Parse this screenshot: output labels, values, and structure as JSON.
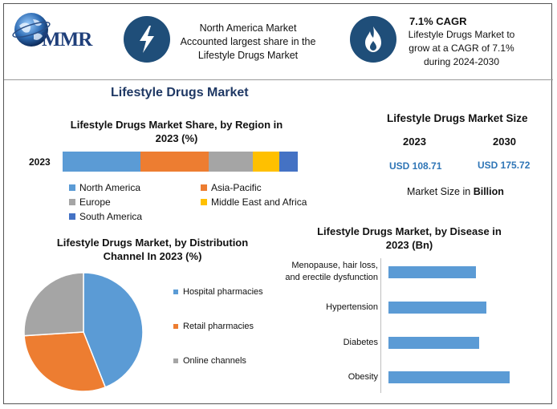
{
  "logo": {
    "text": "MMR"
  },
  "header": {
    "card1": {
      "icon": "lightning-icon",
      "line1": "North America Market",
      "line2": "Accounted largest share in the",
      "line3": "Lifestyle Drugs Market"
    },
    "card2": {
      "icon": "flame-icon",
      "title": "7.1% CAGR",
      "line1": "Lifestyle Drugs Market to",
      "line2": "grow at a CAGR of 7.1%",
      "line3": "during 2024-2030"
    }
  },
  "main_title": "Lifestyle Drugs Market",
  "market_size": {
    "title": "Lifestyle Drugs Market Size",
    "year1": "2023",
    "year2": "2030",
    "value1": "USD 108.71",
    "value2": "USD 175.72",
    "note_prefix": "Market Size in",
    "note_unit": "Billion"
  },
  "colors": {
    "blue": "#5b9bd5",
    "orange": "#ed7d31",
    "gray": "#a5a5a5",
    "yellow": "#ffc000",
    "darkblue": "#4472c4",
    "navy": "#1f4e79"
  },
  "chart_data": [
    {
      "type": "bar",
      "orientation": "horizontal-stacked",
      "title_line1": "Lifestyle Drugs Market Share, by Region in",
      "title_line2": "2023 (%)",
      "categories": [
        "2023"
      ],
      "series": [
        {
          "name": "North America",
          "values": [
            33
          ],
          "color": "#5b9bd5"
        },
        {
          "name": "Asia-Pacific",
          "values": [
            29
          ],
          "color": "#ed7d31"
        },
        {
          "name": "Europe",
          "values": [
            19
          ],
          "color": "#a5a5a5"
        },
        {
          "name": "Middle East and Africa",
          "values": [
            11
          ],
          "color": "#ffc000"
        },
        {
          "name": "South America",
          "values": [
            8
          ],
          "color": "#4472c4"
        }
      ],
      "legend": "bottom"
    },
    {
      "type": "pie",
      "title_line1": "Lifestyle Drugs Market, by Distribution",
      "title_line2": "Channel In 2023 (%)",
      "slices": [
        {
          "name": "Hospital pharmacies",
          "value": 44,
          "color": "#5b9bd5"
        },
        {
          "name": "Retail pharmacies",
          "value": 30,
          "color": "#ed7d31"
        },
        {
          "name": "Online channels",
          "value": 26,
          "color": "#a5a5a5"
        }
      ],
      "legend": "right"
    },
    {
      "type": "bar",
      "orientation": "horizontal",
      "title_line1": "Lifestyle Drugs Market, by Disease in",
      "title_line2": "2023 (Bn)",
      "categories": [
        [
          "Menopause, hair loss,",
          "and erectile dysfunction"
        ],
        [
          "Hypertension"
        ],
        [
          "Diabetes"
        ],
        [
          "Obesity"
        ]
      ],
      "values": [
        26,
        29,
        27,
        36
      ],
      "xlim": [
        0,
        40
      ],
      "color": "#5b9bd5"
    }
  ]
}
